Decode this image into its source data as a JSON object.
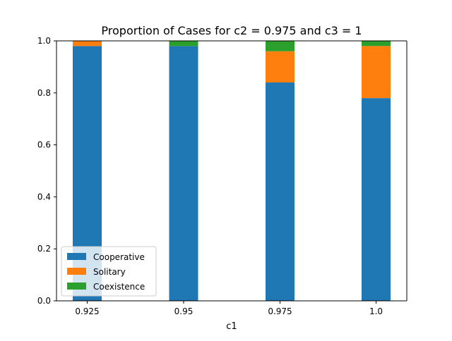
{
  "chart_data": {
    "type": "bar",
    "stacked": true,
    "title": "Proportion of Cases for c2 = 0.975 and c3 = 1",
    "xlabel": "c1",
    "ylabel": "",
    "categories": [
      "0.925",
      "0.95",
      "0.975",
      "1.0"
    ],
    "ylim": [
      0,
      1
    ],
    "yticks": [
      "0.0",
      "0.2",
      "0.4",
      "0.6",
      "0.8",
      "1.0"
    ],
    "series": [
      {
        "name": "Cooperative",
        "color": "#1f77b4",
        "values": [
          0.98,
          0.98,
          0.84,
          0.78
        ]
      },
      {
        "name": "Solitary",
        "color": "#ff7f0e",
        "values": [
          0.02,
          0.0,
          0.12,
          0.2
        ]
      },
      {
        "name": "Coexistence",
        "color": "#2ca02c",
        "values": [
          0.0,
          0.02,
          0.04,
          0.02
        ]
      }
    ],
    "grid": false,
    "legend": "lower-left"
  }
}
